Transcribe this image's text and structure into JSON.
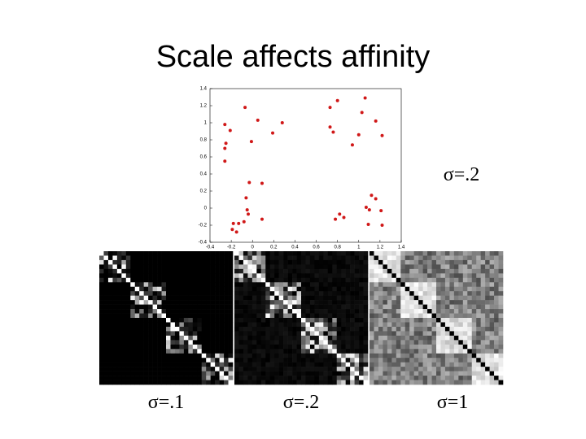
{
  "title": "Scale affects affinity",
  "chart_data": {
    "type": "scatter",
    "color": "#d01818",
    "x": [
      -0.07,
      0.05,
      -0.26,
      -0.21,
      -0.25,
      -0.26,
      -0.01,
      -0.26,
      0.19,
      0.28,
      0.73,
      0.8,
      1.06,
      1.03,
      1.16,
      0.73,
      0.76,
      1.0,
      0.94,
      1.22,
      -0.03,
      0.09,
      -0.06,
      -0.05,
      -0.04,
      -0.08,
      0.09,
      -0.13,
      -0.18,
      -0.19,
      -0.15,
      1.12,
      1.16,
      1.07,
      1.1,
      1.21,
      0.82,
      0.86,
      0.78,
      1.22,
      1.09
    ],
    "y": [
      1.18,
      1.03,
      0.98,
      0.91,
      0.76,
      0.7,
      0.78,
      0.55,
      0.88,
      1.0,
      1.18,
      1.26,
      1.29,
      1.12,
      1.02,
      0.95,
      0.89,
      0.86,
      0.74,
      0.85,
      0.3,
      0.29,
      0.12,
      -0.02,
      -0.07,
      -0.16,
      -0.13,
      -0.18,
      -0.18,
      -0.25,
      -0.28,
      0.15,
      0.11,
      0.01,
      -0.02,
      -0.03,
      -0.07,
      -0.11,
      -0.13,
      -0.2,
      -0.19
    ],
    "xlim": [
      -0.4,
      1.4
    ],
    "ylim": [
      -0.4,
      1.4
    ],
    "xticks": [
      -0.4,
      -0.2,
      0,
      0.2,
      0.4,
      0.6,
      0.8,
      1,
      1.2,
      1.4
    ],
    "yticks": [
      -0.4,
      -0.2,
      0,
      0.2,
      0.4,
      0.6,
      0.8,
      1,
      1.2,
      1.4
    ]
  },
  "scatter_label": "σ=.2",
  "matrix_labels": [
    "σ=.1",
    "σ=.2",
    "σ=1"
  ]
}
